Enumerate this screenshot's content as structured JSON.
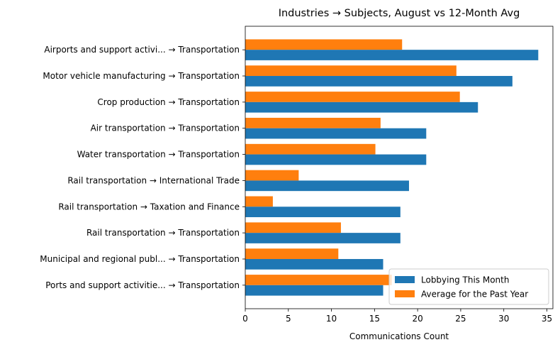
{
  "chart_data": {
    "type": "bar",
    "orientation": "horizontal",
    "title": "Industries → Subjects, August vs 12-Month Avg",
    "xlabel": "Communications Count",
    "ylabel": "",
    "xlim": [
      0,
      35.7
    ],
    "xticks": [
      0,
      5,
      10,
      15,
      20,
      25,
      30,
      35
    ],
    "grid": false,
    "legend_position": "lower-right",
    "categories": [
      "Airports and support activi... → Transportation",
      "Motor vehicle manufacturing → Transportation",
      "Crop production → Transportation",
      "Air transportation → Transportation",
      "Water transportation → Transportation",
      "Rail transportation → International Trade",
      "Rail transportation → Taxation and Finance",
      "Rail transportation → Transportation",
      "Municipal and regional publ... → Transportation",
      "Ports and support activitie... → Transportation"
    ],
    "series": [
      {
        "name": "Lobbying This Month",
        "color": "#1f77b4",
        "values": [
          34,
          31,
          27,
          21,
          21,
          19,
          18,
          18,
          16,
          16
        ]
      },
      {
        "name": "Average for the Past Year",
        "color": "#ff7f0e",
        "values": [
          18.2,
          24.5,
          24.9,
          15.7,
          15.1,
          6.2,
          3.2,
          11.1,
          10.8,
          17.0
        ]
      }
    ]
  }
}
